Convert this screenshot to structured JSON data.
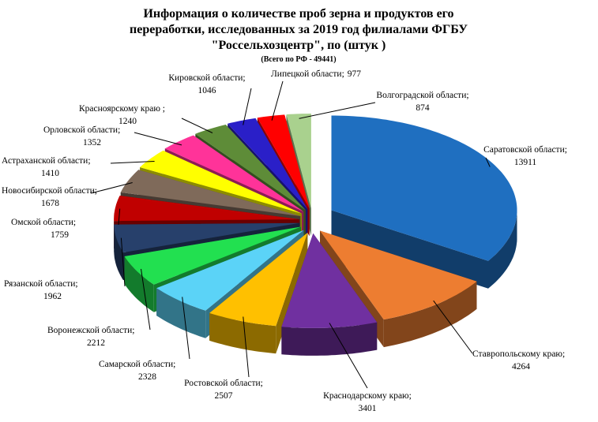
{
  "chart_data": {
    "type": "pie3d",
    "title": [
      "Информация о количестве проб зерна и продуктов его",
      "переработки, исследованных за 2019 год филиалами ФГБУ",
      "\"Россельхозцентр\", по  (штук )"
    ],
    "subtitle": "(Всего по РФ - 49441)",
    "categories": [
      "Саратовской области;",
      "Ставропольскому краю;",
      "Краснодарскому краю;",
      "Ростовской области;",
      "Самарской области;",
      "Воронежской области;",
      "Рязанской области;",
      "Омской области;",
      "Новосибирской области;",
      "Астраханской области;",
      "Орловской области;",
      "Красноярскому краю ;",
      "Кировской области;",
      "Липецкой области;",
      "Волгоградской области;"
    ],
    "values": [
      13911,
      4264,
      3401,
      2507,
      2328,
      2212,
      1962,
      1759,
      1678,
      1410,
      1352,
      1240,
      1046,
      977,
      874
    ],
    "colors": [
      "#1f6fc0",
      "#ed7d31",
      "#7030a0",
      "#ffc000",
      "#5bd3f7",
      "#22e050",
      "#27406b",
      "#c00000",
      "#7f6a5a",
      "#ffff00",
      "#ff3399",
      "#5e8c38",
      "#2a1fc8",
      "#ff0000",
      "#a9d18e"
    ]
  }
}
